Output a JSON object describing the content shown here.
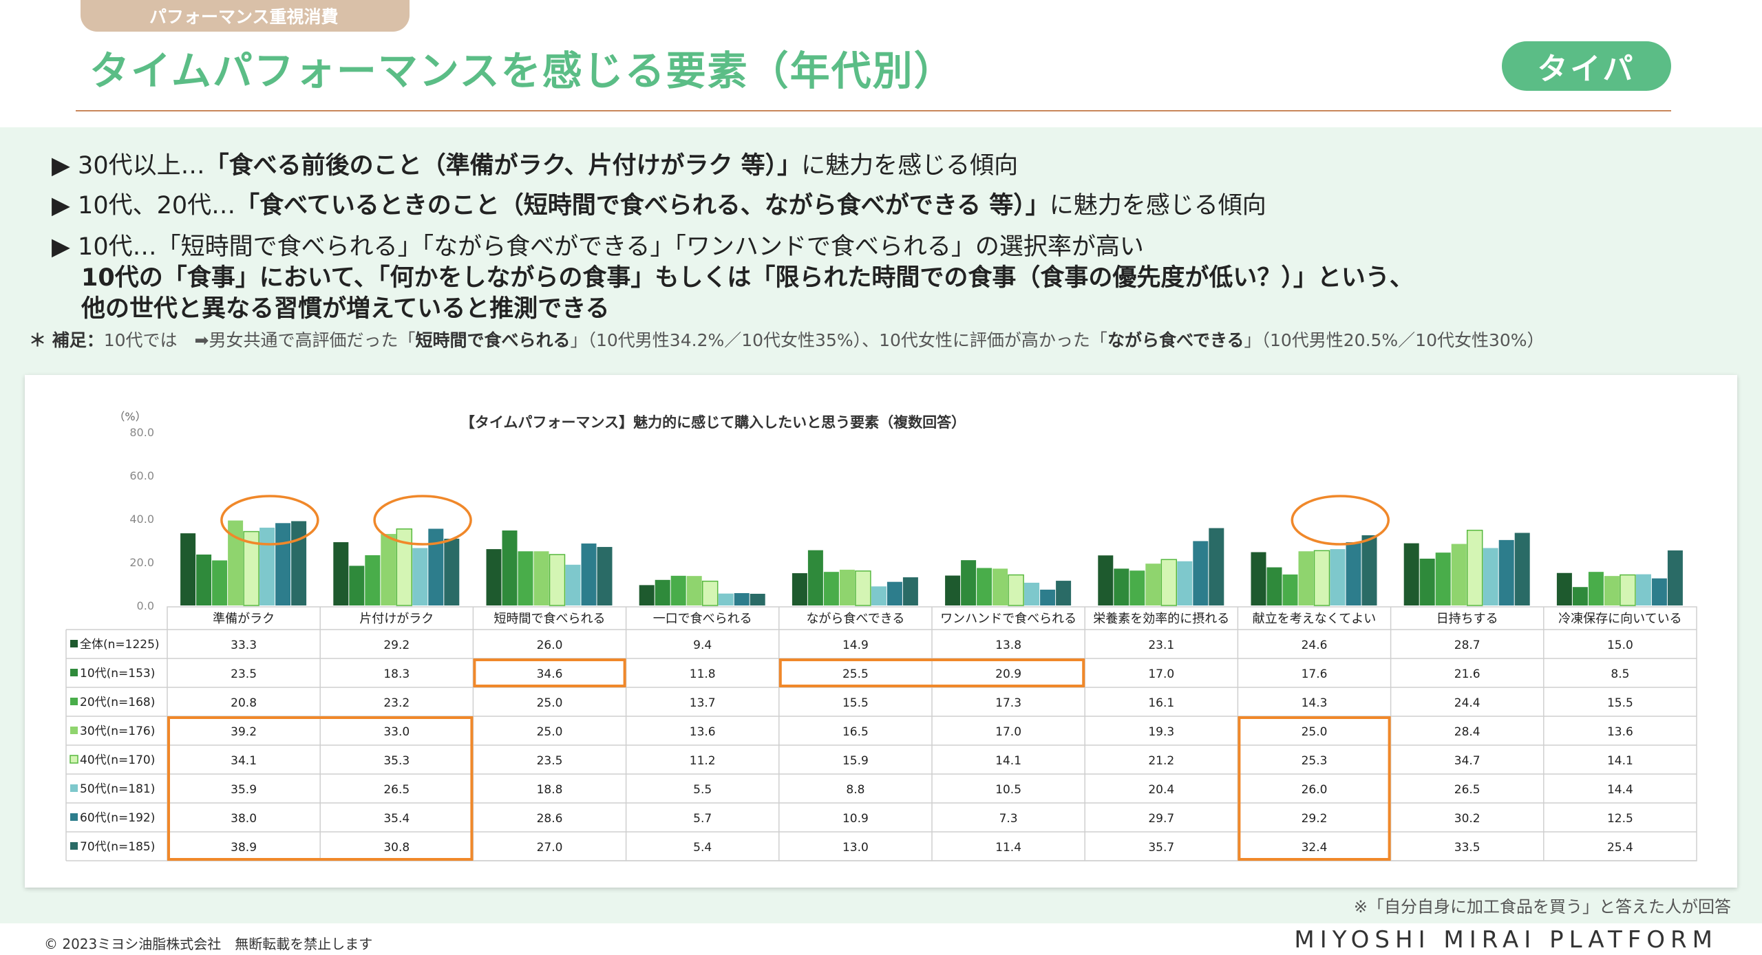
{
  "header": {
    "tag": "パフォーマンス重視消費",
    "title": "タイムパフォーマンスを感じる要素（年代別）",
    "badge": "タイパ"
  },
  "bullets": [
    {
      "marker": "▶",
      "pre": " 30代以上…",
      "bold": "「食べる前後のこと（準備がラク、片付けがラク 等）」",
      "post": "に魅力を感じる傾向"
    },
    {
      "marker": "▶",
      "pre": " 10代、20代…",
      "bold": "「食べているときのこと（短時間で食べられる、ながら食べができる 等）」",
      "post": "に魅力を感じる傾向"
    },
    {
      "marker": "▶",
      "pre": " 10代…「短時間で食べられる」「ながら食べができる」「ワンハンドで食べられる」の選択率が高い",
      "bold": "",
      "post": ""
    }
  ],
  "summary": [
    "10代の「食事」において、「何かをしながらの食事」もしくは「限られた時間での食事（食事の優先度が低い？）」という、",
    "他の世代と異なる習慣が増えていると推測できる"
  ],
  "note": {
    "prefix": "＊ 補足：",
    "t1": "10代では　➡男女共通で高評価だった「",
    "b1": "短時間で食べられる",
    "t2": "」（10代男性34.2%／10代女性35%）、10代女性に評価が高かった「",
    "b2": "ながら食べできる",
    "t3": "」（10代男性20.5%／10代女性30%）"
  },
  "footer": {
    "note": "※「自分自身に加工食品を買う」と答えた人が回答",
    "copyright": "© 2023ミヨシ油脂株式会社　無断転載を禁止します",
    "brand": "MIYOSHI MIRAI PLATFORM"
  },
  "chart_data": {
    "type": "bar",
    "title": "【タイムパフォーマンス】魅力的に感じて購入したいと思う要素（複数回答）",
    "ylabel": "（%）",
    "ylim": [
      0,
      80
    ],
    "yticks": [
      "0.0",
      "20.0",
      "40.0",
      "60.0",
      "80.0"
    ],
    "legend": "table-left",
    "categories": [
      "準備がラク",
      "片付けがラク",
      "短時間で食べられる",
      "一口で食べられる",
      "ながら食べできる",
      "ワンハンドで食べられる",
      "栄養素を効率的に摂れる",
      "献立を考えなくてよい",
      "日持ちする",
      "冷凍保存に向いている"
    ],
    "series": [
      {
        "name": "全体(n=1225)",
        "color": "#1e5a2e",
        "values": [
          33.3,
          29.2,
          26.0,
          9.4,
          14.9,
          13.8,
          23.1,
          24.6,
          28.7,
          15.0
        ]
      },
      {
        "name": "10代(n=153)",
        "color": "#2f8a3b",
        "values": [
          23.5,
          18.3,
          34.6,
          11.8,
          25.5,
          20.9,
          17.0,
          17.6,
          21.6,
          8.5
        ]
      },
      {
        "name": "20代(n=168)",
        "color": "#49ad4a",
        "values": [
          20.8,
          23.2,
          25.0,
          13.7,
          15.5,
          17.3,
          16.1,
          14.3,
          24.4,
          15.5
        ]
      },
      {
        "name": "30代(n=176)",
        "color": "#8fd46e",
        "values": [
          39.2,
          33.0,
          25.0,
          13.6,
          16.5,
          17.0,
          19.3,
          25.0,
          28.4,
          13.6
        ]
      },
      {
        "name": "40代(n=170)",
        "color": "#d4f5b4",
        "values": [
          34.1,
          35.3,
          23.5,
          11.2,
          15.9,
          14.1,
          21.2,
          25.3,
          34.7,
          14.1
        ]
      },
      {
        "name": "50代(n=181)",
        "color": "#7ec8cc",
        "values": [
          35.9,
          26.5,
          18.8,
          5.5,
          8.8,
          10.5,
          20.4,
          26.0,
          26.5,
          14.4
        ]
      },
      {
        "name": "60代(n=192)",
        "color": "#2d7d8c",
        "values": [
          38.0,
          35.4,
          28.6,
          5.7,
          10.9,
          7.3,
          29.7,
          29.2,
          30.2,
          12.5
        ]
      },
      {
        "name": "70代(n=185)",
        "color": "#2a6b66",
        "values": [
          38.9,
          30.8,
          27.0,
          5.4,
          13.0,
          11.4,
          35.7,
          32.4,
          33.5,
          25.4
        ]
      }
    ],
    "highlight_color": "#f0882a"
  }
}
